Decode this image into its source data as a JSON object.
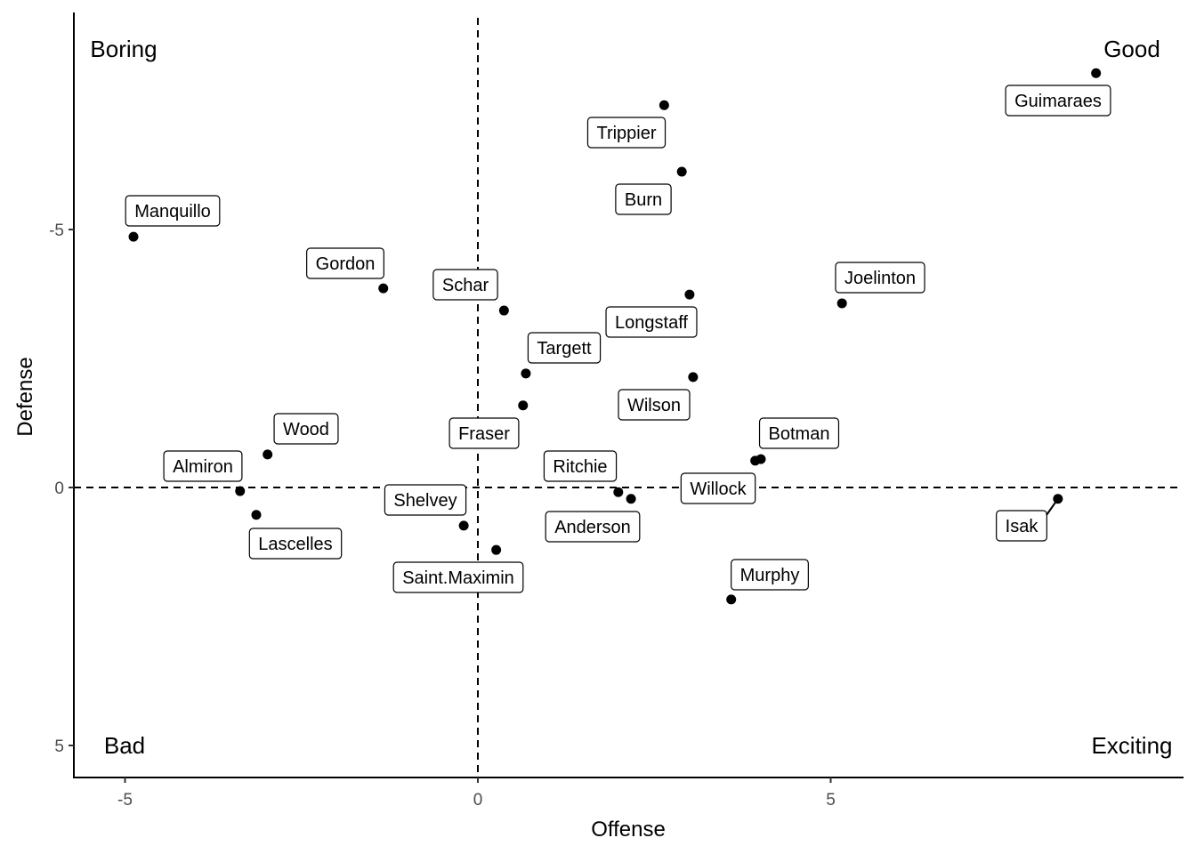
{
  "chart_data": {
    "type": "scatter",
    "title": "",
    "xlabel": "Offense",
    "ylabel": "Defense",
    "xlim": [
      -5.7,
      10
    ],
    "ylim": [
      -9.2,
      5.6
    ],
    "y_reversed": true,
    "x_ticks": [
      -5,
      0,
      5
    ],
    "y_ticks": [
      -5,
      0,
      5
    ],
    "reference_lines": {
      "x": 0,
      "y": 0,
      "style": "dashed"
    },
    "quadrant_labels": {
      "top_left": "Boring",
      "top_right": "Good",
      "bottom_left": "Bad",
      "bottom_right": "Exciting"
    },
    "grid": false,
    "points": [
      {
        "name": "Guimaraes",
        "x": 8.76,
        "y": -8.03
      },
      {
        "name": "Trippier",
        "x": 2.64,
        "y": -7.41
      },
      {
        "name": "Burn",
        "x": 2.89,
        "y": -6.12
      },
      {
        "name": "Manquillo",
        "x": -4.88,
        "y": -4.86
      },
      {
        "name": "Gordon",
        "x": -1.34,
        "y": -3.86
      },
      {
        "name": "Schar",
        "x": 0.37,
        "y": -3.43
      },
      {
        "name": "Longstaff",
        "x": 3.0,
        "y": -3.74
      },
      {
        "name": "Joelinton",
        "x": 5.16,
        "y": -3.57
      },
      {
        "name": "Targett",
        "x": 0.68,
        "y": -2.21
      },
      {
        "name": "Wilson",
        "x": 3.05,
        "y": -2.14
      },
      {
        "name": "Fraser",
        "x": 0.64,
        "y": -1.59
      },
      {
        "name": "Wood",
        "x": -2.98,
        "y": -0.64
      },
      {
        "name": "Botman",
        "x": 4.01,
        "y": -0.55
      },
      {
        "name": "Willock",
        "x": 3.93,
        "y": -0.52
      },
      {
        "name": "Almiron",
        "x": -3.37,
        "y": 0.07
      },
      {
        "name": "Ritchie",
        "x": 1.99,
        "y": 0.09
      },
      {
        "name": "Anderson",
        "x": 2.17,
        "y": 0.22
      },
      {
        "name": "Lascelles",
        "x": -3.14,
        "y": 0.53
      },
      {
        "name": "Isak",
        "x": 8.22,
        "y": 0.22
      },
      {
        "name": "Shelvey",
        "x": -0.2,
        "y": 0.74
      },
      {
        "name": "Saint.Maximin",
        "x": 0.26,
        "y": 1.21
      },
      {
        "name": "Murphy",
        "x": 3.59,
        "y": 2.17
      }
    ]
  }
}
